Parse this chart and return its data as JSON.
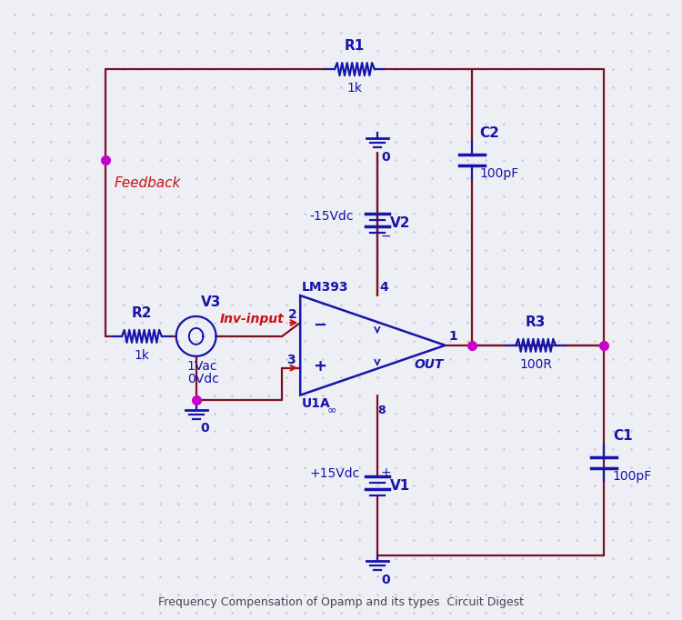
{
  "bg_color": "#eeeef5",
  "dot_color": "#c8c8d8",
  "wire_color": "#7B1020",
  "comp_color": "#1515AA",
  "label_color": "#1515AA",
  "red_label_color": "#CC1010",
  "node_color": "#CC00CC",
  "title": "Frequency Compensation of Opamp and its types  Circuit Digest",
  "R1_label": "R1",
  "R1_val": "1k",
  "R2_label": "R2",
  "R2_val": "1k",
  "R3_label": "R3",
  "R3_val": "100R",
  "C1_label": "C1",
  "C1_val": "100pF",
  "C2_label": "C2",
  "C2_val": "100pF",
  "V1_label": "V1",
  "V1_val": "+15Vdc",
  "V2_label": "V2",
  "V2_val": "-15Vdc",
  "V3_label": "V3",
  "V3_val1": "1Vac",
  "V3_val2": "0Vdc",
  "U_model": "LM393",
  "U_label": "U1A",
  "U_sub": "∞",
  "feedback_label": "Feedback",
  "inv_label": "Inv-input",
  "out_label": "OUT",
  "gnd_label": "0",
  "pin2": "2",
  "pin3": "3",
  "pin4": "4",
  "pin1": "1",
  "pin8": "8"
}
